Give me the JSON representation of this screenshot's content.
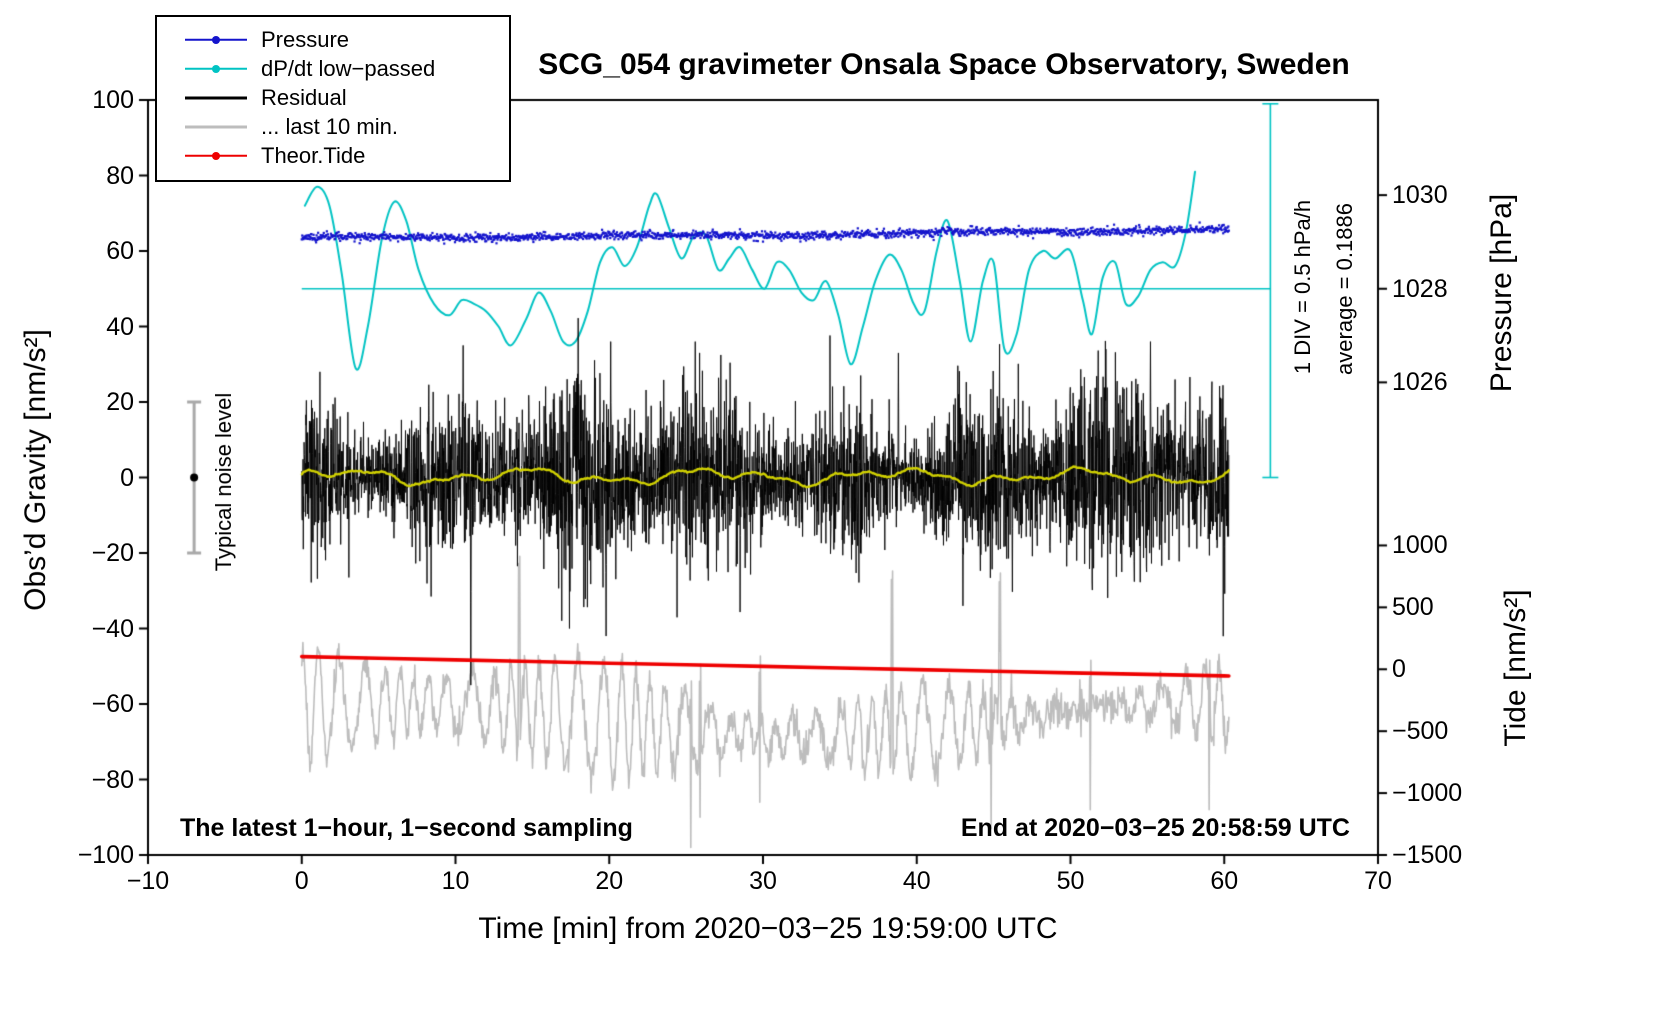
{
  "title": "SCG_054 gravimeter Onsala Space Observatory, Sweden",
  "axes": {
    "xlabel": "Time [min] from 2020−03−25 19:59:00 UTC",
    "ylabel_left": "Obs’d Gravity [nm/s²]",
    "ylabel_pressure": "Pressure [hPa]",
    "ylabel_tide": "Tide [nm/s²]",
    "x_ticks": [
      -10,
      0,
      10,
      20,
      30,
      40,
      50,
      60,
      70
    ],
    "y_ticks_left": [
      -100,
      -80,
      -60,
      -40,
      -20,
      0,
      20,
      40,
      60,
      80,
      100
    ],
    "pressure_ticks": [
      1026,
      1028,
      1030
    ],
    "tide_ticks": [
      1000,
      500,
      0,
      -500,
      -1000,
      -1500
    ]
  },
  "legend": {
    "entries": [
      {
        "label": "Pressure",
        "color": "#1414cc",
        "marker": "dot-line"
      },
      {
        "label": "dP/dt low−passed",
        "color": "#00c3c3",
        "marker": "dot-line"
      },
      {
        "label": "Residual",
        "color": "#000000",
        "marker": "line"
      },
      {
        "label": "... last 10 min.",
        "color": "#bdbdbd",
        "marker": "line"
      },
      {
        "label": "Theor.Tide",
        "color": "#ee0000",
        "marker": "dot-line"
      }
    ]
  },
  "annotations": {
    "noise_bar_label": "Typical noise level",
    "div_label": "1 DIV = 0.5 hPa/h",
    "average_label": "average = 0.1886",
    "bottom_left": "The latest 1−hour, 1−second sampling",
    "bottom_right": "End at 2020−03−25 20:58:59 UTC"
  },
  "chart_data": {
    "type": "line",
    "title": "SCG_054 gravimeter Onsala Space Observatory, Sweden",
    "xlabel": "Time [min] from 2020-03-25 19:59:00 UTC",
    "xlim": [
      -10,
      70
    ],
    "ylim": [
      -100,
      100
    ],
    "pressure_axis": {
      "ref_hpa": 1028,
      "gravity_at_ref": 50,
      "gravity_per_hpa": 12.4
    },
    "tide_axis": {
      "gravity_at_ref": -50.8,
      "gravity_per_unit": 0.0328
    },
    "average_line": {
      "x0": 0,
      "x1": 63,
      "gravity": 50,
      "color": "#00c3c3"
    },
    "scale_bar": {
      "x": 63,
      "g0": 0,
      "g1": 99,
      "color": "#00c3c3"
    },
    "noise_bar": {
      "x": -7,
      "g0": -20,
      "g1": 20,
      "color": "#a9a9a9",
      "dot_color": "#000000"
    },
    "series": [
      {
        "id": "dpdt",
        "name": "dP/dt low-passed (1 DIV = 0.5 hPa/h, average = 0.1886 hPa/h)",
        "color": "#00c3c3",
        "width": 2,
        "axis": "gravity-equivalent",
        "points": [
          [
            0.2,
            72
          ],
          [
            1.0,
            77
          ],
          [
            1.8,
            72
          ],
          [
            2.6,
            54
          ],
          [
            3.5,
            29
          ],
          [
            4.3,
            40
          ],
          [
            5.2,
            63
          ],
          [
            6.0,
            73
          ],
          [
            6.8,
            68
          ],
          [
            7.6,
            55
          ],
          [
            8.6,
            46
          ],
          [
            9.6,
            43
          ],
          [
            10.4,
            47
          ],
          [
            11.2,
            46
          ],
          [
            12.0,
            44
          ],
          [
            12.8,
            40
          ],
          [
            13.6,
            35
          ],
          [
            14.6,
            42
          ],
          [
            15.4,
            49
          ],
          [
            16.2,
            44
          ],
          [
            17.0,
            36
          ],
          [
            17.8,
            36
          ],
          [
            18.6,
            44
          ],
          [
            19.4,
            57
          ],
          [
            20.2,
            61
          ],
          [
            21.0,
            56
          ],
          [
            21.8,
            61
          ],
          [
            22.6,
            72
          ],
          [
            23.1,
            75
          ],
          [
            23.9,
            66
          ],
          [
            24.7,
            58
          ],
          [
            25.5,
            64
          ],
          [
            26.3,
            64
          ],
          [
            27.1,
            55
          ],
          [
            27.8,
            58
          ],
          [
            28.5,
            61
          ],
          [
            29.3,
            55
          ],
          [
            30.1,
            50
          ],
          [
            30.9,
            57
          ],
          [
            31.7,
            55
          ],
          [
            32.5,
            49
          ],
          [
            33.3,
            47
          ],
          [
            34.1,
            52
          ],
          [
            34.9,
            43
          ],
          [
            35.7,
            30
          ],
          [
            36.5,
            40
          ],
          [
            37.3,
            52
          ],
          [
            38.2,
            59
          ],
          [
            39.0,
            55
          ],
          [
            39.8,
            46
          ],
          [
            40.5,
            44
          ],
          [
            41.3,
            60
          ],
          [
            42.0,
            68
          ],
          [
            42.8,
            52
          ],
          [
            43.5,
            36
          ],
          [
            44.3,
            52
          ],
          [
            45.0,
            57
          ],
          [
            45.7,
            34
          ],
          [
            46.5,
            38
          ],
          [
            47.3,
            55
          ],
          [
            48.2,
            60
          ],
          [
            49.0,
            58
          ],
          [
            50.0,
            60
          ],
          [
            50.8,
            47
          ],
          [
            51.4,
            38
          ],
          [
            52.1,
            53
          ],
          [
            52.9,
            57
          ],
          [
            53.6,
            46
          ],
          [
            54.4,
            48
          ],
          [
            55.2,
            55
          ],
          [
            56.0,
            57
          ],
          [
            56.8,
            56
          ],
          [
            57.5,
            65
          ],
          [
            58.1,
            81
          ]
        ]
      },
      {
        "id": "pressure",
        "name": "Pressure",
        "color": "#1414cc",
        "axis": "pressure-hPa",
        "model": {
          "start_hpa": 1029.07,
          "avg_dpdt_hpa_per_hr": 0.1886,
          "noise_hpa": 0.042,
          "n": 1810,
          "x0": 0,
          "x1": 60.3,
          "seed": 11
        }
      },
      {
        "id": "gray",
        "name": "Residual, last 10 min (fast sampling)",
        "color": "#bdbdbd",
        "width": 1.6,
        "axis": "gravity",
        "model": {
          "base": -64,
          "n": 1600,
          "x0": 0,
          "x1": 60.3,
          "seed": 21,
          "noise": 2.2,
          "spikes": [
            [
              14.15,
              -38
            ],
            [
              25.3,
              -98
            ],
            [
              25.9,
              -90
            ],
            [
              29.8,
              -86
            ],
            [
              38.4,
              -45
            ],
            [
              44.85,
              -93
            ],
            [
              45.4,
              -46
            ],
            [
              51.3,
              -88
            ],
            [
              59.0,
              -88
            ]
          ]
        }
      },
      {
        "id": "residual",
        "name": "Residual",
        "color": "#000000",
        "width": 0.9,
        "axis": "gravity",
        "model": {
          "sigma_base": 10,
          "n": 3620,
          "x0": 0,
          "x1": 60.3,
          "seed": 7,
          "spikes": [
            [
              10.5,
              35
            ],
            [
              11.0,
              -55
            ],
            [
              19.8,
              -42
            ],
            [
              20.1,
              36
            ],
            [
              25.6,
              36
            ],
            [
              38.8,
              33
            ],
            [
              43.0,
              -34
            ],
            [
              52.3,
              34
            ],
            [
              55.2,
              36
            ]
          ]
        }
      },
      {
        "id": "residual_smooth",
        "name": "Residual smoothed",
        "color": "#d0d000",
        "width": 2.4,
        "axis": "gravity",
        "model": {
          "offset": 0.3,
          "n": 800,
          "x0": 0,
          "x1": 60.3,
          "seed": 5
        }
      },
      {
        "id": "tide",
        "name": "Theor.Tide",
        "color": "#ee0000",
        "width": 3.6,
        "axis": "tide",
        "points": [
          [
            0,
            102
          ],
          [
            5,
            89
          ],
          [
            10,
            76
          ],
          [
            15,
            63
          ],
          [
            20,
            49
          ],
          [
            25,
            36
          ],
          [
            30,
            23
          ],
          [
            35,
            10
          ],
          [
            40,
            -3
          ],
          [
            45,
            -16
          ],
          [
            50,
            -29
          ],
          [
            55,
            -41
          ],
          [
            60,
            -53
          ],
          [
            60.3,
            -54
          ]
        ]
      }
    ]
  }
}
